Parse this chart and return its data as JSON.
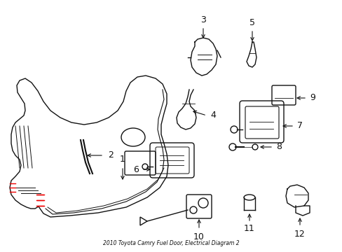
{
  "bg_color": "#ffffff",
  "line_color": "#111111",
  "red_color": "#ee0000",
  "figsize": [
    4.89,
    3.6
  ],
  "dpi": 100,
  "title": "2010 Toyota Camry Fuel Door, Electrical Diagram 2"
}
